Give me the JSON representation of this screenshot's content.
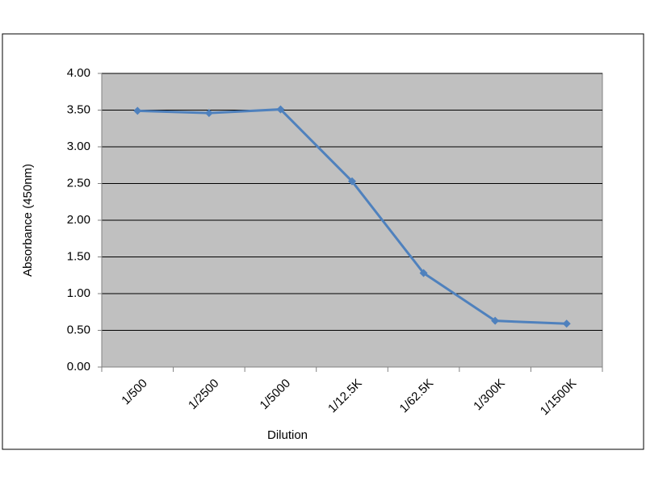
{
  "chart_data": {
    "type": "line",
    "x_label": "Dilution",
    "y_label": "Absorbance (450nm)",
    "categories": [
      "1/500",
      "1/2500",
      "1/5000",
      "1/12.5K",
      "1/62.5K",
      "1/300K",
      "1/1500K"
    ],
    "series": [
      {
        "color": "#4f81bd",
        "values": [
          3.49,
          3.46,
          3.51,
          2.53,
          1.28,
          0.63,
          0.59
        ]
      }
    ],
    "ylim": [
      0,
      4
    ],
    "yticks": [
      {
        "value": 0,
        "label": "0.00"
      },
      {
        "value": 0.5,
        "label": "0.50"
      },
      {
        "value": 1,
        "label": "1.00"
      },
      {
        "value": 1.5,
        "label": "1.50"
      },
      {
        "value": 2,
        "label": "2.00"
      },
      {
        "value": 2.5,
        "label": "2.50"
      },
      {
        "value": 3,
        "label": "3.00"
      },
      {
        "value": 3.5,
        "label": "3.50"
      },
      {
        "value": 4,
        "label": "4.00"
      }
    ],
    "grid": true
  }
}
